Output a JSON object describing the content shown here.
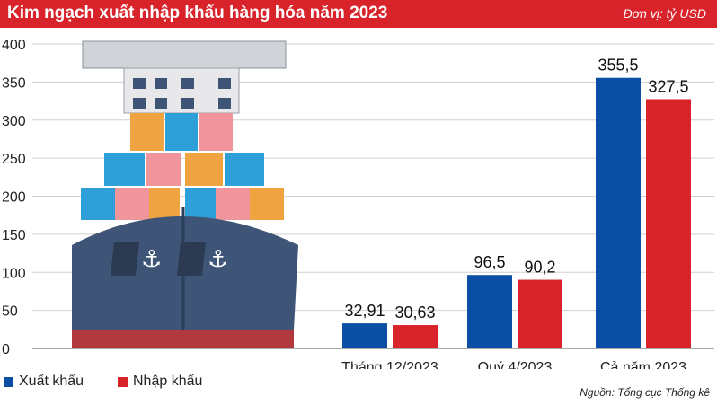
{
  "header": {
    "title": "Kim ngạch xuất nhập khẩu hàng hóa năm 2023",
    "unit": "Đơn vị: tỷ USD"
  },
  "source": "Nguồn: Tổng cục Thống kê",
  "colors": {
    "header_bg": "#d8232a",
    "export": "#0a4fa3",
    "import": "#d8232a"
  },
  "chart_data": {
    "type": "bar",
    "title": "Kim ngạch xuất nhập khẩu hàng hóa năm 2023",
    "xlabel": "",
    "ylabel": "",
    "categories": [
      "Tháng 12/2023",
      "Quý 4/2023",
      "Cả năm 2023"
    ],
    "series": [
      {
        "name": "Xuất khẩu",
        "values": [
          32.91,
          96.5,
          355.5
        ],
        "labels": [
          "32,91",
          "96,5",
          "355,5"
        ],
        "color": "#0a4fa3"
      },
      {
        "name": "Nhập khẩu",
        "values": [
          30.63,
          90.2,
          327.5
        ],
        "labels": [
          "30,63",
          "90,2",
          "327,5"
        ],
        "color": "#d8232a"
      }
    ],
    "yticks": [
      0,
      50,
      100,
      150,
      200,
      250,
      300,
      350,
      400
    ],
    "ylim": [
      0,
      400
    ],
    "grid": true,
    "legend_position": "bottom-left",
    "illustration": "cargo-ship-with-containers"
  }
}
